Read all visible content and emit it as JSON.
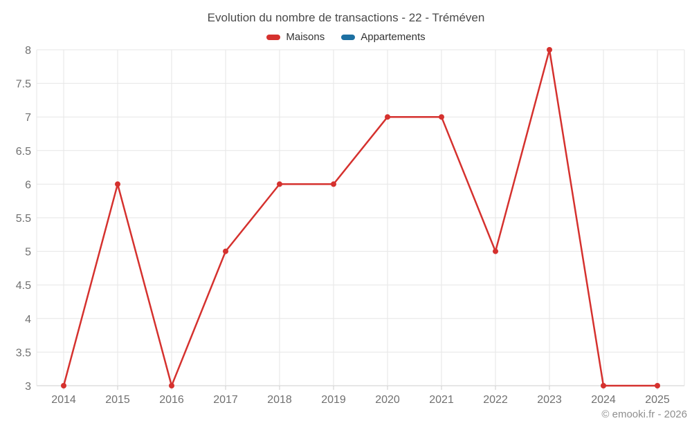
{
  "title": "Evolution du nombre de transactions - 22 - Tréméven",
  "legend": {
    "items": [
      {
        "label": "Maisons",
        "color": "#d5312e"
      },
      {
        "label": "Appartements",
        "color": "#1d70a2"
      }
    ]
  },
  "footer": {
    "credit": "© emooki.fr - 2026"
  },
  "colors": {
    "grid": "#e6e6e6",
    "axis_line": "#cccccc",
    "tick": "#cccccc",
    "axis_label": "#707070",
    "title": "#4a4a4a",
    "legend_text": "#333333",
    "credit_text": "#8f8f8f",
    "background": "#ffffff"
  },
  "chart_data": {
    "type": "line",
    "title": "Evolution du nombre de transactions - 22 - Tréméven",
    "categories": [
      "2014",
      "2015",
      "2016",
      "2017",
      "2018",
      "2019",
      "2020",
      "2021",
      "2022",
      "2023",
      "2024",
      "2025"
    ],
    "series": [
      {
        "name": "Maisons",
        "color": "#d5312e",
        "values": [
          3,
          6,
          3,
          5,
          6,
          6,
          7,
          7,
          5,
          8,
          3,
          3
        ]
      },
      {
        "name": "Appartements",
        "color": "#1d70a2",
        "values": []
      }
    ],
    "xlabel": "",
    "ylabel": "",
    "ylim": [
      3,
      8
    ],
    "ytick_step": 0.5,
    "grid": true,
    "legend_position": "top",
    "marker": "circle"
  }
}
